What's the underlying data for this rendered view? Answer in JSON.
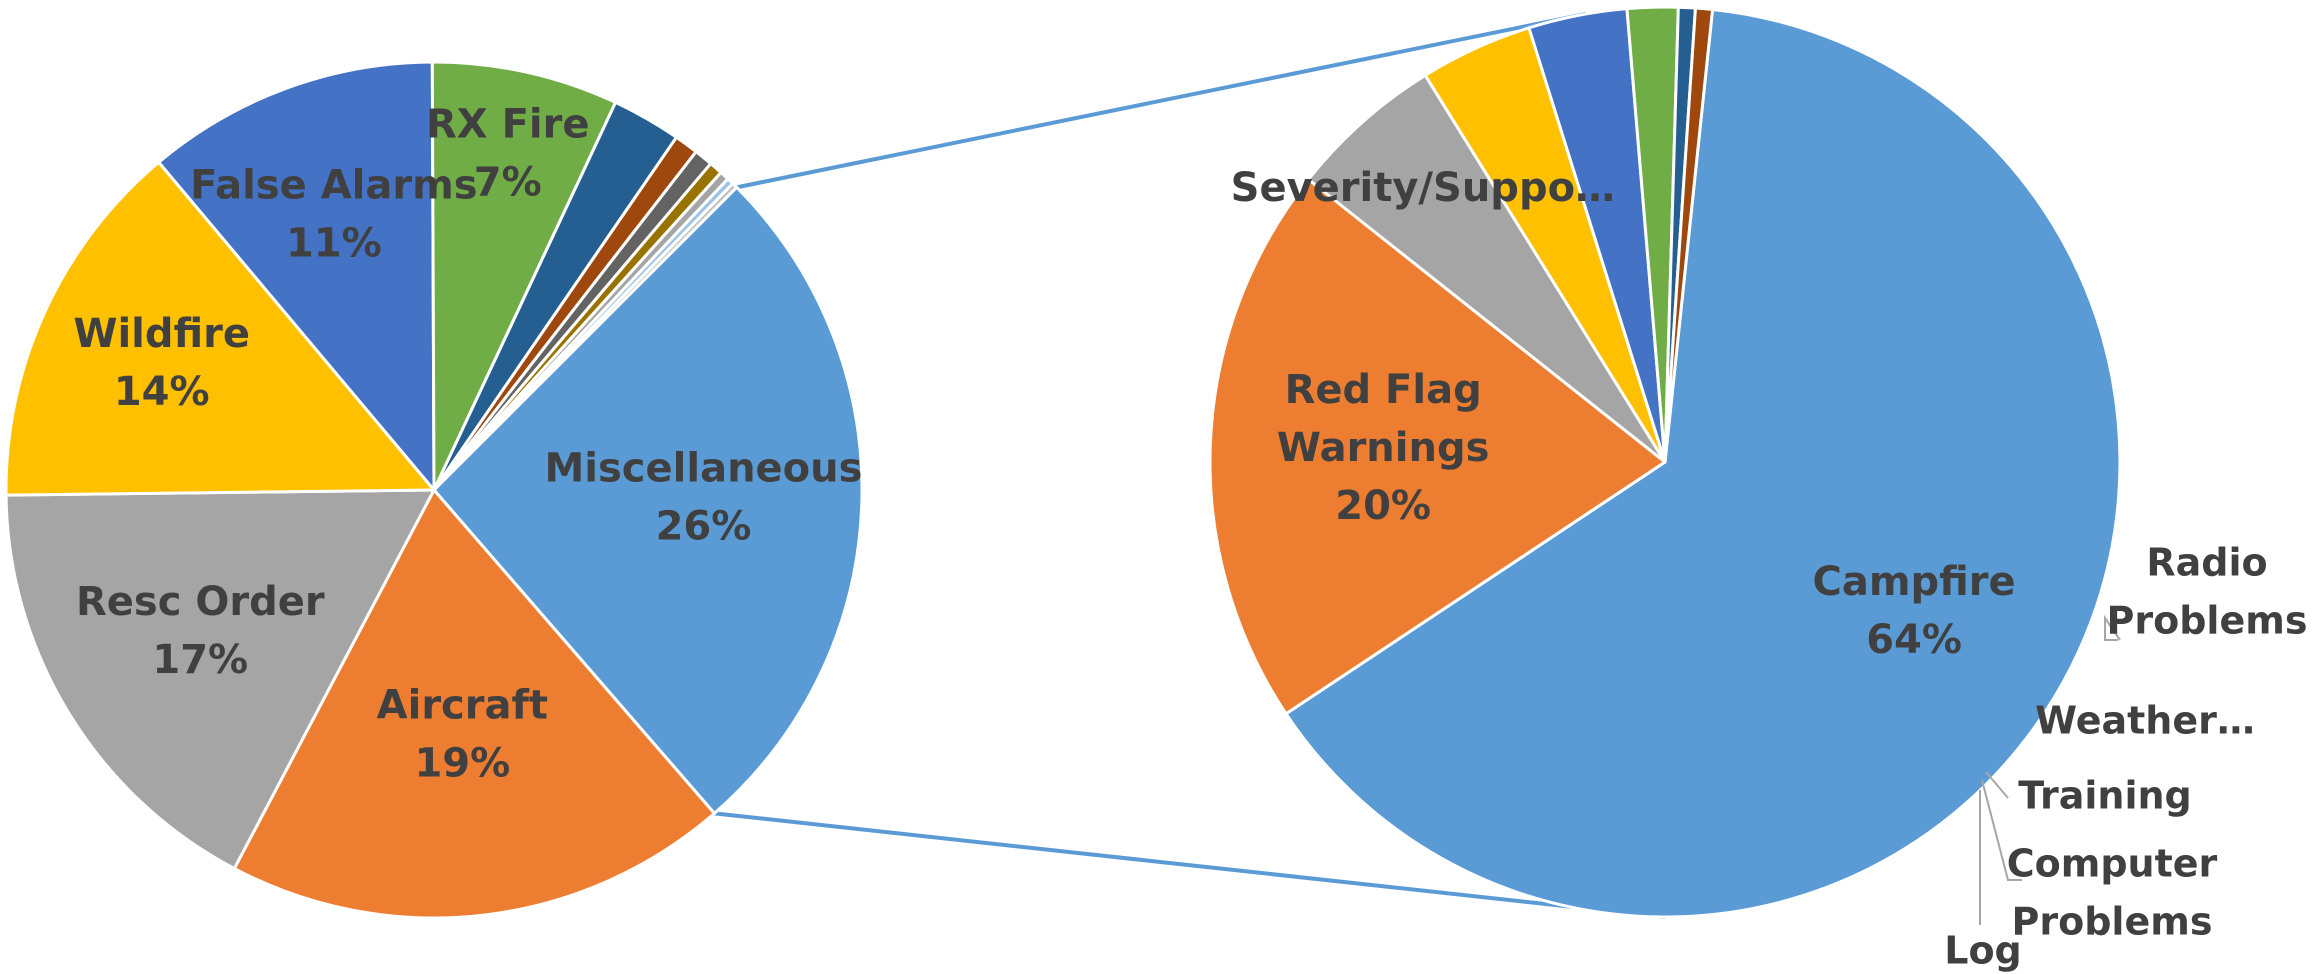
{
  "chart_data": {
    "type": "pie",
    "subtype": "pie-of-pie",
    "title": "",
    "main": {
      "slices": [
        {
          "label": "Miscellaneous",
          "value": 26,
          "value_label": "26%",
          "color": "#5B9BD5",
          "show_label": true
        },
        {
          "label": "Aircraft",
          "value": 19,
          "value_label": "19%",
          "color": "#ED7D31",
          "show_label": true
        },
        {
          "label": "Resc Order",
          "value": 17,
          "value_label": "17%",
          "color": "#A5A5A5",
          "show_label": true
        },
        {
          "label": "Wildfire",
          "value": 14,
          "value_label": "14%",
          "color": "#FFC000",
          "show_label": true
        },
        {
          "label": "False Alarms",
          "value": 11,
          "value_label": "11%",
          "color": "#4472C4",
          "show_label": true
        },
        {
          "label": "RX Fire",
          "value": 7,
          "value_label": "7%",
          "color": "#70AD47",
          "show_label": true
        },
        {
          "label": "",
          "value": 2.6,
          "color": "#255E91",
          "show_label": false
        },
        {
          "label": "",
          "value": 0.9,
          "color": "#9E480E",
          "show_label": false
        },
        {
          "label": "",
          "value": 0.7,
          "color": "#636363",
          "show_label": false
        },
        {
          "label": "",
          "value": 0.5,
          "color": "#997300",
          "show_label": false
        },
        {
          "label": "",
          "value": 0.35,
          "color": "#A5A5A5",
          "show_label": false
        },
        {
          "label": "",
          "value": 0.25,
          "color": "#9DC3E6",
          "show_label": false
        },
        {
          "label": "",
          "value": 0.2,
          "color": "#BFBFBF",
          "show_label": false
        }
      ]
    },
    "secondary": {
      "parent": "Miscellaneous",
      "slices": [
        {
          "label": "Campfire",
          "value": 64,
          "value_label": "64%",
          "color": "#5B9BD5"
        },
        {
          "label": "Red Flag Warnings",
          "value": 20,
          "value_label": "20%",
          "color": "#ED7D31"
        },
        {
          "label": "Severity/Suppo…",
          "value": 5.5,
          "value_label": "",
          "color": "#A5A5A5"
        },
        {
          "label": "Radio Problems",
          "value": 4,
          "value_label": "",
          "color": "#FFC000"
        },
        {
          "label": "Weather…",
          "value": 3.5,
          "value_label": "",
          "color": "#4472C4"
        },
        {
          "label": "Training",
          "value": 1.8,
          "value_label": "",
          "color": "#70AD47"
        },
        {
          "label": "Computer Problems",
          "value": 0.6,
          "value_label": "",
          "color": "#255E91"
        },
        {
          "label": "Log",
          "value": 0.6,
          "value_label": "",
          "color": "#9E480E"
        }
      ]
    },
    "connector_color": "#5B9BD5",
    "legend": "none"
  }
}
